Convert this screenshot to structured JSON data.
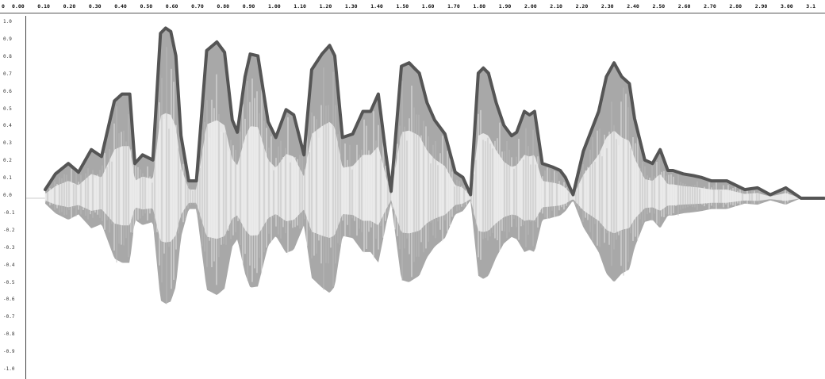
{
  "ruler": {
    "labels": [
      "0",
      "0.00",
      "0.10",
      "0.20",
      "0.30",
      "0.40",
      "0.50",
      "0.60",
      "0.70",
      "0.80",
      "0.90",
      "1.00",
      "1.10",
      "1.20",
      "1.30",
      "1.40",
      "1.50",
      "1.60",
      "1.70",
      "1.80",
      "1.90",
      "2.00",
      "2.10",
      "2.20",
      "2.30",
      "2.40",
      "2.50",
      "2.60",
      "2.70",
      "2.80",
      "2.90",
      "3.00",
      "3.1"
    ]
  },
  "amplitude_axis": {
    "labels": [
      "1.0",
      "0.9",
      "0.8",
      "0.7",
      "0.6",
      "0.5",
      "0.4",
      "0.3",
      "0.2",
      "0.1",
      "0.0",
      "-0.1",
      "-0.2",
      "-0.3",
      "-0.4",
      "-0.5",
      "-0.6",
      "-0.7",
      "-0.8",
      "-0.9",
      "-1.0"
    ]
  },
  "envelope": {
    "time": [
      0.13,
      0.17,
      0.22,
      0.26,
      0.31,
      0.35,
      0.4,
      0.43,
      0.46,
      0.48,
      0.51,
      0.55,
      0.58,
      0.6,
      0.62,
      0.64,
      0.66,
      0.69,
      0.72,
      0.76,
      0.8,
      0.83,
      0.86,
      0.88,
      0.91,
      0.93,
      0.96,
      1.0,
      1.03,
      1.07,
      1.1,
      1.14,
      1.17,
      1.21,
      1.24,
      1.26,
      1.29,
      1.33,
      1.37,
      1.4,
      1.43,
      1.46,
      1.48,
      1.52,
      1.55,
      1.57,
      1.59,
      1.62,
      1.65,
      1.69,
      1.73,
      1.76,
      1.79,
      1.82,
      1.84,
      1.86,
      1.89,
      1.92,
      1.95,
      1.97,
      2.0,
      2.02,
      2.04,
      2.07,
      2.11,
      2.14,
      2.16,
      2.19,
      2.23,
      2.29,
      2.32,
      2.35,
      2.38,
      2.41,
      2.43,
      2.47,
      2.5,
      2.53,
      2.56,
      2.58,
      2.62,
      2.66,
      2.69,
      2.73,
      2.79,
      2.86,
      2.91,
      2.96,
      3.02,
      3.08,
      3.15,
      3.17
    ],
    "amp": [
      0.05,
      0.14,
      0.2,
      0.15,
      0.28,
      0.24,
      0.56,
      0.6,
      0.6,
      0.2,
      0.25,
      0.22,
      0.95,
      0.98,
      0.96,
      0.82,
      0.36,
      0.1,
      0.1,
      0.85,
      0.9,
      0.84,
      0.45,
      0.38,
      0.7,
      0.83,
      0.82,
      0.44,
      0.35,
      0.51,
      0.48,
      0.25,
      0.74,
      0.83,
      0.88,
      0.82,
      0.35,
      0.37,
      0.5,
      0.5,
      0.6,
      0.25,
      0.04,
      0.76,
      0.78,
      0.75,
      0.72,
      0.55,
      0.45,
      0.37,
      0.15,
      0.12,
      0.02,
      0.72,
      0.75,
      0.72,
      0.55,
      0.42,
      0.36,
      0.38,
      0.5,
      0.48,
      0.5,
      0.2,
      0.18,
      0.16,
      0.12,
      0.02,
      0.27,
      0.5,
      0.7,
      0.78,
      0.7,
      0.66,
      0.46,
      0.22,
      0.2,
      0.28,
      0.16,
      0.16,
      0.14,
      0.13,
      0.12,
      0.1,
      0.1,
      0.05,
      0.06,
      0.02,
      0.06,
      0.0,
      0.0,
      0.0
    ],
    "color": "#555555"
  },
  "colors": {
    "outer_fill": "#a8a8a8",
    "inner_fill": "#e6e6e6",
    "streak": "#f2f2f2",
    "tail": "#bbbbbb"
  }
}
